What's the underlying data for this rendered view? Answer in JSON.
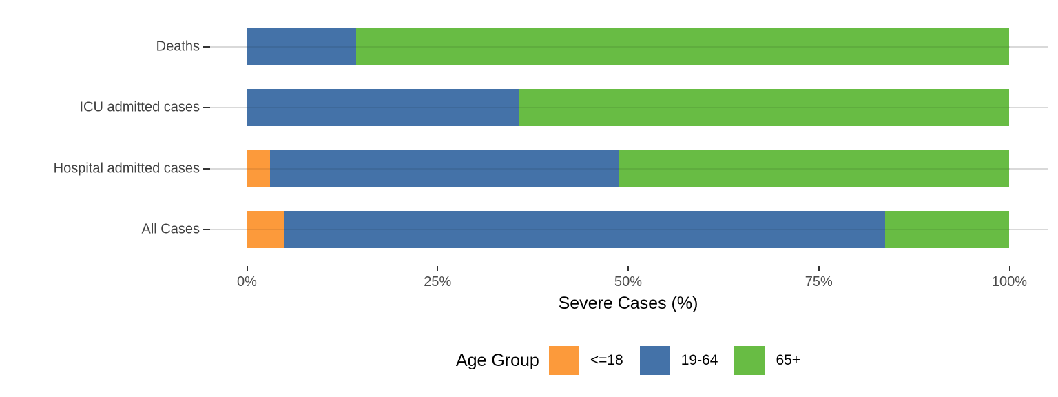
{
  "chart_data": {
    "type": "bar",
    "orientation": "horizontal",
    "stacked": true,
    "title": "",
    "xlabel": "Severe Cases (%)",
    "ylabel": "",
    "xlim": [
      0,
      100
    ],
    "grid": "horizontal-only",
    "legend_position": "bottom",
    "legend_title": "Age Group",
    "categories": [
      "Deaths",
      "ICU admitted cases",
      "Hospital admitted cases",
      "All Cases"
    ],
    "series": [
      {
        "name": "<=18",
        "color": "#FC9A3B",
        "values": [
          0,
          0,
          3.0,
          4.9
        ]
      },
      {
        "name": "19-64",
        "color": "#4472A8",
        "values": [
          14.3,
          35.7,
          45.7,
          78.8
        ]
      },
      {
        "name": "65+",
        "color": "#68BC44",
        "values": [
          85.7,
          64.3,
          51.3,
          16.3
        ]
      }
    ],
    "x_ticks": [
      {
        "value": 0,
        "label": "0%"
      },
      {
        "value": 25,
        "label": "25%"
      },
      {
        "value": 50,
        "label": "50%"
      },
      {
        "value": 75,
        "label": "75%"
      },
      {
        "value": 100,
        "label": "100%"
      }
    ]
  },
  "colors": {
    "background": "#FFFFFF",
    "gridline": "#D9D9D9",
    "tick_mark": "#333333",
    "axis_text": "#404040",
    "tick_label_text": "#4A4A4A",
    "title_text": "#000000"
  }
}
